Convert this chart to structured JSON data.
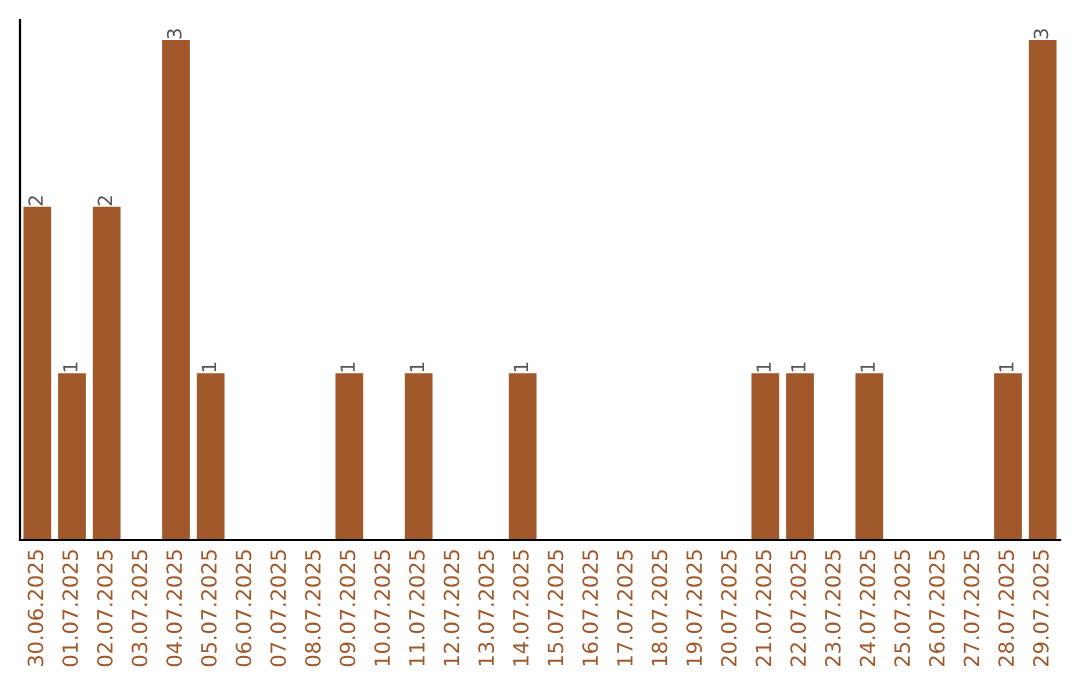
{
  "chart_data": {
    "type": "bar",
    "categories": [
      "30.06.2025",
      "01.07.2025",
      "02.07.2025",
      "03.07.2025",
      "04.07.2025",
      "05.07.2025",
      "06.07.2025",
      "07.07.2025",
      "08.07.2025",
      "09.07.2025",
      "10.07.2025",
      "11.07.2025",
      "12.07.2025",
      "13.07.2025",
      "14.07.2025",
      "15.07.2025",
      "16.07.2025",
      "17.07.2025",
      "18.07.2025",
      "19.07.2025",
      "20.07.2025",
      "21.07.2025",
      "22.07.2025",
      "23.07.2025",
      "24.07.2025",
      "25.07.2025",
      "26.07.2025",
      "27.07.2025",
      "28.07.2025",
      "29.07.2025"
    ],
    "values": [
      2,
      1,
      2,
      0,
      3,
      1,
      0,
      0,
      0,
      1,
      0,
      1,
      0,
      0,
      1,
      0,
      0,
      0,
      0,
      0,
      0,
      1,
      1,
      0,
      1,
      0,
      0,
      0,
      1,
      3
    ],
    "value_labels": [
      "2",
      "1",
      "2",
      null,
      "3",
      "1",
      null,
      null,
      null,
      "1",
      null,
      "1",
      null,
      null,
      "1",
      null,
      null,
      null,
      null,
      null,
      null,
      "1",
      "1",
      null,
      "1",
      null,
      null,
      null,
      "1",
      "3"
    ],
    "color": "#a0572a",
    "ylim": [
      0,
      3.12
    ],
    "tick_labels": "x",
    "grid": false,
    "legend": false
  }
}
